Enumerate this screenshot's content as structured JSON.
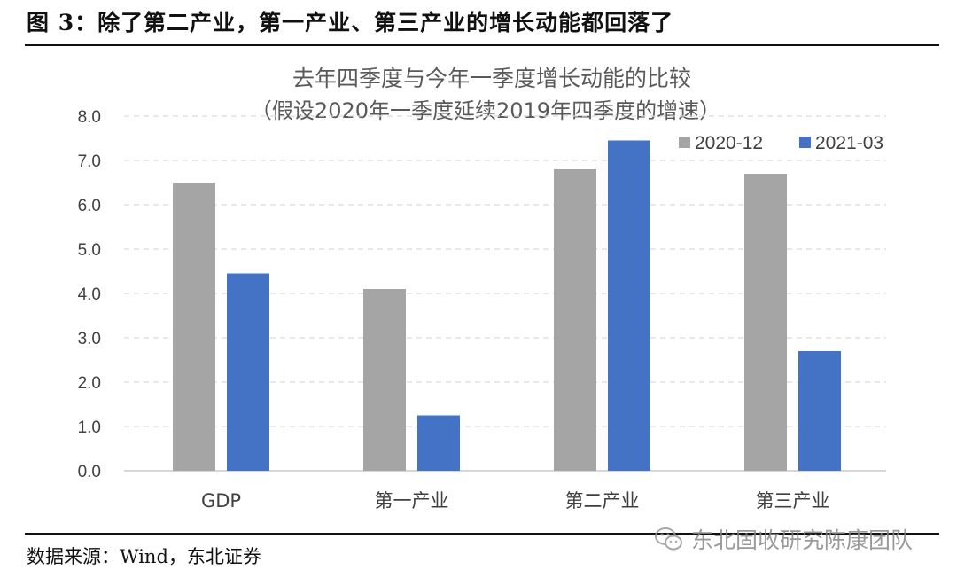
{
  "figure": {
    "label": "图 3：除了第二产业，第一产业、第三产业的增长动能都回落了",
    "source": "数据来源：Wind，东北证券",
    "watermark": "东北固收研究陈康团队"
  },
  "chart_data": {
    "type": "bar",
    "title": "去年四季度与今年一季度增长动能的比较",
    "subtitle": "（假设2020年一季度延续2019年四季度的增速）",
    "categories": [
      "GDP",
      "第一产业",
      "第二产业",
      "第三产业"
    ],
    "series": [
      {
        "name": "2020-12",
        "color": "#a5a5a5",
        "values": [
          6.5,
          4.1,
          6.8,
          6.7
        ]
      },
      {
        "name": "2021-03",
        "color": "#4472c4",
        "values": [
          4.45,
          1.25,
          7.45,
          2.7
        ]
      }
    ],
    "ylim": [
      0,
      8
    ],
    "yticks": [
      "0.0",
      "1.0",
      "2.0",
      "3.0",
      "4.0",
      "5.0",
      "6.0",
      "7.0",
      "8.0"
    ],
    "grid": true,
    "legend": "top-right"
  }
}
